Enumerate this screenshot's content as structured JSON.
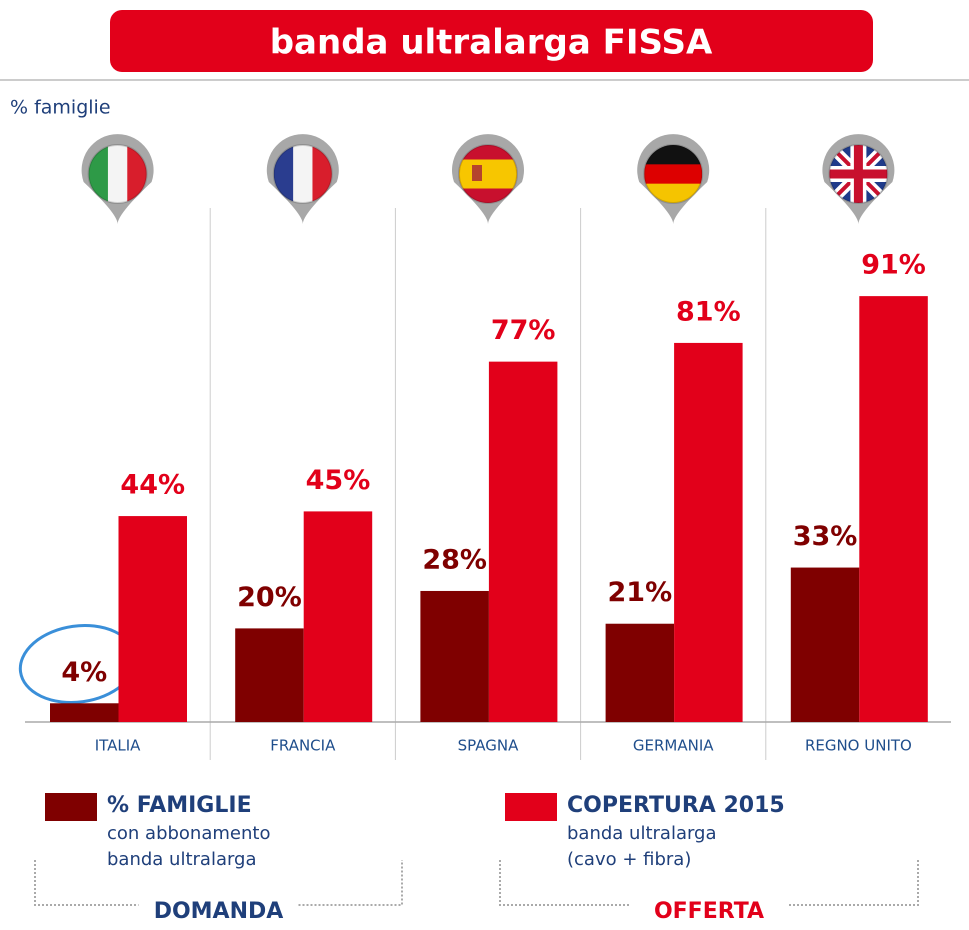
{
  "chart_data": {
    "type": "bar",
    "title": "banda ultralarga FISSA",
    "unit_label": "% famiglie",
    "categories": [
      "ITALIA",
      "FRANCIA",
      "SPAGNA",
      "GERMANIA",
      "REGNO UNITO"
    ],
    "series": [
      {
        "name": "% FAMIGLIE",
        "color": "#7f0000",
        "values": [
          4,
          20,
          28,
          21,
          33
        ],
        "value_labels": [
          "4%",
          "20%",
          "28%",
          "21%",
          "33%"
        ],
        "description": [
          "con abbonamento",
          "banda ultralarga"
        ],
        "group": "DOMANDA"
      },
      {
        "name": "COPERTURA 2015",
        "color": "#e2001a",
        "values": [
          44,
          45,
          77,
          81,
          91
        ],
        "value_labels": [
          "44%",
          "45%",
          "77%",
          "81%",
          "91%"
        ],
        "description": [
          "banda ultralarga",
          "(cavo + fibra)"
        ],
        "group": "OFFERTA"
      }
    ],
    "ylim": [
      0,
      100
    ]
  }
}
